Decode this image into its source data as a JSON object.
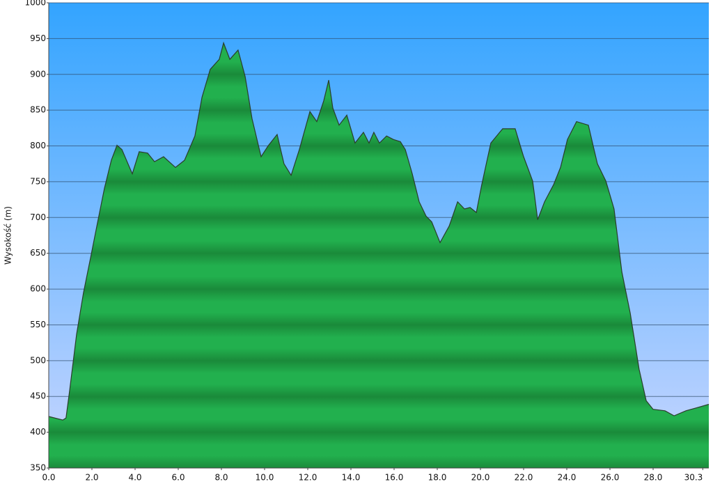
{
  "chart_data": {
    "type": "area",
    "y_label": "Wysokość (m)",
    "x": [
      0,
      0.65,
      0.8,
      0.97,
      1.29,
      1.61,
      1.94,
      2.26,
      2.58,
      2.9,
      3.16,
      3.39,
      3.87,
      4.19,
      4.58,
      4.9,
      5.32,
      5.87,
      6.29,
      6.77,
      7.1,
      7.48,
      7.9,
      8.1,
      8.39,
      8.77,
      9.1,
      9.42,
      9.84,
      10.16,
      10.58,
      10.9,
      11.23,
      11.61,
      12.1,
      12.42,
      12.74,
      12.97,
      13.16,
      13.45,
      13.81,
      14.19,
      14.58,
      14.84,
      15.06,
      15.32,
      15.65,
      15.97,
      16.29,
      16.52,
      16.84,
      17.16,
      17.48,
      17.74,
      18.13,
      18.55,
      18.94,
      19.26,
      19.52,
      19.81,
      20.06,
      20.48,
      21.03,
      21.61,
      22.0,
      22.42,
      22.65,
      22.97,
      23.39,
      23.71,
      24.03,
      24.45,
      25.0,
      25.42,
      25.81,
      26.19,
      26.55,
      26.94,
      27.35,
      27.68,
      28.0,
      28.55,
      28.97,
      29.52,
      30.0,
      30.58
    ],
    "values": [
      422,
      417,
      420,
      459,
      537,
      595,
      644,
      693,
      741,
      780,
      801,
      795,
      761,
      792,
      790,
      778,
      785,
      770,
      780,
      814,
      868,
      907,
      921,
      944,
      921,
      934,
      897,
      838,
      785,
      800,
      816,
      775,
      759,
      795,
      848,
      834,
      863,
      892,
      853,
      829,
      843,
      804,
      819,
      804,
      819,
      804,
      814,
      809,
      806,
      795,
      761,
      722,
      702,
      694,
      665,
      688,
      722,
      712,
      714,
      707,
      746,
      804,
      824,
      824,
      785,
      751,
      697,
      722,
      746,
      770,
      809,
      834,
      829,
      775,
      751,
      712,
      624,
      566,
      488,
      444,
      432,
      430,
      423,
      430,
      434,
      439
    ],
    "color": "#1faa4a",
    "line_color": "#2b3d2b",
    "xlim": [
      0,
      30.58
    ],
    "xticks": [
      {
        "value": 0,
        "label": "0.0"
      },
      {
        "value": 2,
        "label": "2.0"
      },
      {
        "value": 4,
        "label": "4.0"
      },
      {
        "value": 6,
        "label": "6.0"
      },
      {
        "value": 8,
        "label": "8.0"
      },
      {
        "value": 10,
        "label": "10.0"
      },
      {
        "value": 12,
        "label": "12.0"
      },
      {
        "value": 14,
        "label": "14.0"
      },
      {
        "value": 16,
        "label": "16.0"
      },
      {
        "value": 18,
        "label": "18.0"
      },
      {
        "value": 20,
        "label": "20.0"
      },
      {
        "value": 22,
        "label": "22.0"
      },
      {
        "value": 24,
        "label": "24.0"
      },
      {
        "value": 26,
        "label": "26.0"
      },
      {
        "value": 28,
        "label": "28.0"
      },
      {
        "value": 30.3,
        "label": "30.3"
      }
    ],
    "ylim": [
      350,
      1000
    ],
    "yticks": [
      350,
      400,
      450,
      500,
      550,
      600,
      650,
      700,
      750,
      800,
      850,
      900,
      950,
      1000
    ],
    "grid": true
  }
}
